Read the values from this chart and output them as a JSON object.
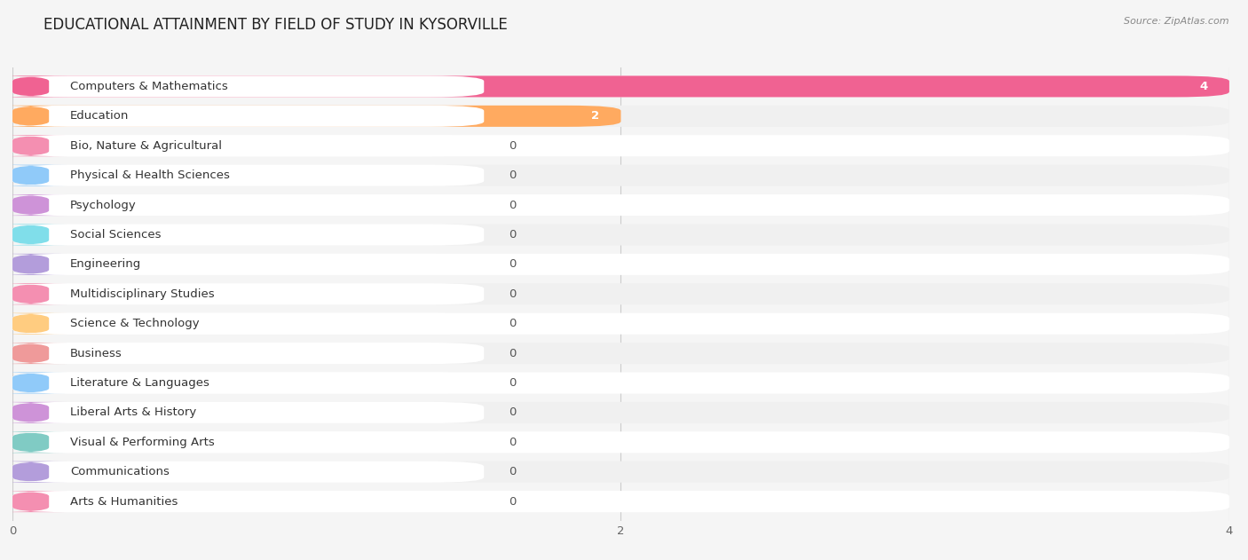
{
  "title": "EDUCATIONAL ATTAINMENT BY FIELD OF STUDY IN KYSORVILLE",
  "source": "Source: ZipAtlas.com",
  "categories": [
    "Computers & Mathematics",
    "Education",
    "Bio, Nature & Agricultural",
    "Physical & Health Sciences",
    "Psychology",
    "Social Sciences",
    "Engineering",
    "Multidisciplinary Studies",
    "Science & Technology",
    "Business",
    "Literature & Languages",
    "Liberal Arts & History",
    "Visual & Performing Arts",
    "Communications",
    "Arts & Humanities"
  ],
  "values": [
    4,
    2,
    0,
    0,
    0,
    0,
    0,
    0,
    0,
    0,
    0,
    0,
    0,
    0,
    0
  ],
  "bar_colors": [
    "#F06292",
    "#FFAA60",
    "#F48FB1",
    "#90CAF9",
    "#CE93D8",
    "#80DEEA",
    "#B39DDB",
    "#F48FB1",
    "#FFCC80",
    "#EF9A9A",
    "#90CAF9",
    "#CE93D8",
    "#80CBC4",
    "#B39DDB",
    "#F48FB1"
  ],
  "pill_colors": [
    "#F8BBD0",
    "#FFE0B2",
    "#F8BBD0",
    "#BBDEFB",
    "#E1BEE7",
    "#B2EBF2",
    "#D1C4E9",
    "#F8BBD0",
    "#FFE0B2",
    "#FFCDD2",
    "#BBDEFB",
    "#E1BEE7",
    "#B2DFDB",
    "#D1C4E9",
    "#F8BBD0"
  ],
  "row_bg_colors": [
    "#ffffff",
    "#f0f0f0"
  ],
  "background_color": "#f5f5f5",
  "xlim": [
    0,
    4
  ],
  "xticks": [
    0,
    2,
    4
  ],
  "title_fontsize": 12,
  "label_fontsize": 9.5,
  "value_fontsize": 9.5
}
